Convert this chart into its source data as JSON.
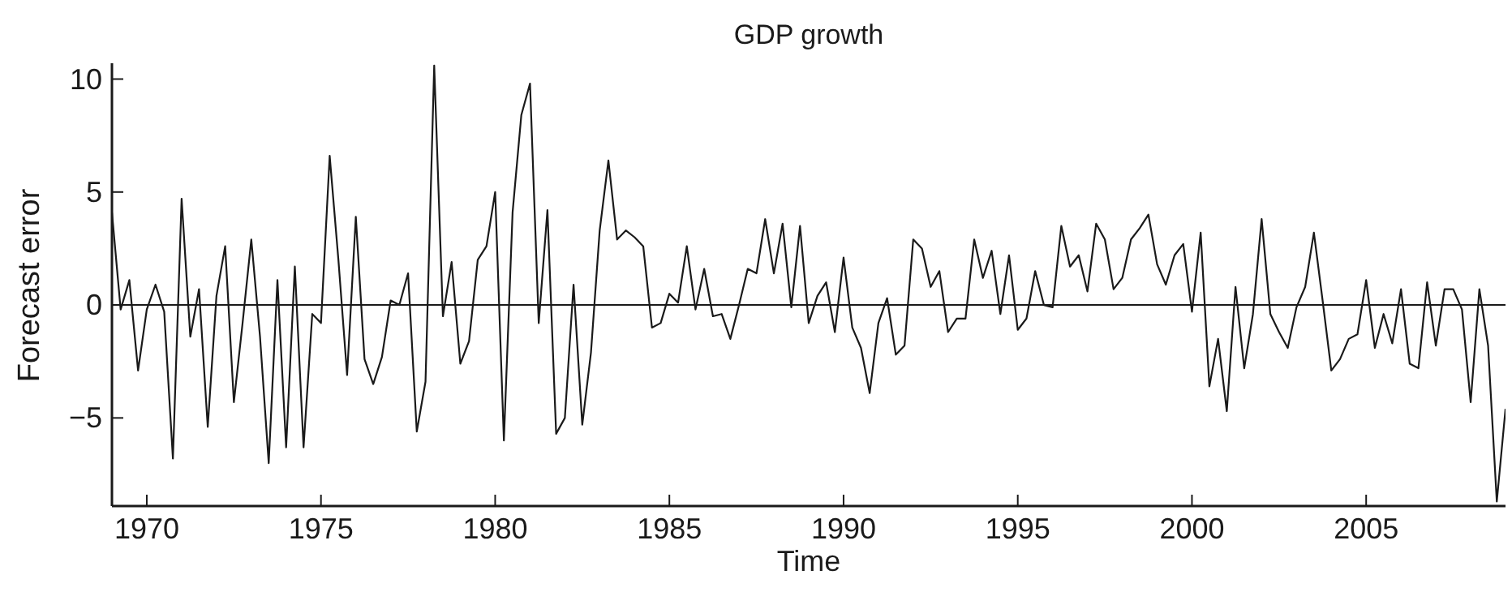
{
  "chart_data": {
    "type": "line",
    "title": "GDP growth",
    "xlabel": "Time",
    "ylabel": "Forecast error",
    "x": [
      1969,
      1969.25,
      1969.5,
      1969.75,
      1970,
      1970.25,
      1970.5,
      1970.75,
      1971,
      1971.25,
      1971.5,
      1971.75,
      1972,
      1972.25,
      1972.5,
      1972.75,
      1973,
      1973.25,
      1973.5,
      1973.75,
      1974,
      1974.25,
      1974.5,
      1974.75,
      1975,
      1975.25,
      1975.5,
      1975.75,
      1976,
      1976.25,
      1976.5,
      1976.75,
      1977,
      1977.25,
      1977.5,
      1977.75,
      1978,
      1978.25,
      1978.5,
      1978.75,
      1979,
      1979.25,
      1979.5,
      1979.75,
      1980,
      1980.25,
      1980.5,
      1980.75,
      1981,
      1981.25,
      1981.5,
      1981.75,
      1982,
      1982.25,
      1982.5,
      1982.75,
      1983,
      1983.25,
      1983.5,
      1983.75,
      1984,
      1984.25,
      1984.5,
      1984.75,
      1985,
      1985.25,
      1985.5,
      1985.75,
      1986,
      1986.25,
      1986.5,
      1986.75,
      1987,
      1987.25,
      1987.5,
      1987.75,
      1988,
      1988.25,
      1988.5,
      1988.75,
      1989,
      1989.25,
      1989.5,
      1989.75,
      1990,
      1990.25,
      1990.5,
      1990.75,
      1991,
      1991.25,
      1991.5,
      1991.75,
      1992,
      1992.25,
      1992.5,
      1992.75,
      1993,
      1993.25,
      1993.5,
      1993.75,
      1994,
      1994.25,
      1994.5,
      1994.75,
      1995,
      1995.25,
      1995.5,
      1995.75,
      1996,
      1996.25,
      1996.5,
      1996.75,
      1997,
      1997.25,
      1997.5,
      1997.75,
      1998,
      1998.25,
      1998.5,
      1998.75,
      1999,
      1999.25,
      1999.5,
      1999.75,
      2000,
      2000.25,
      2000.5,
      2000.75,
      2001,
      2001.25,
      2001.5,
      2001.75,
      2002,
      2002.25,
      2002.5,
      2002.75,
      2003,
      2003.25,
      2003.5,
      2003.75,
      2004,
      2004.25,
      2004.5,
      2004.75,
      2005,
      2005.25,
      2005.5,
      2005.75,
      2006,
      2006.25,
      2006.5,
      2006.75,
      2007,
      2007.25,
      2007.5,
      2007.75,
      2008,
      2008.25,
      2008.5,
      2008.75,
      2009
    ],
    "series": [
      {
        "color": "#1a1a1a",
        "values": [
          4.1,
          -0.2,
          1.1,
          -2.9,
          -0.2,
          0.9,
          -0.3,
          -6.8,
          4.7,
          -1.4,
          0.7,
          -5.4,
          0.4,
          2.6,
          -4.3,
          -0.8,
          2.9,
          -1.4,
          -7.0,
          1.1,
          -6.3,
          1.7,
          -6.3,
          -0.4,
          -0.8,
          6.6,
          2.0,
          -3.1,
          3.9,
          -2.4,
          -3.5,
          -2.3,
          0.2,
          0.0,
          1.4,
          -5.6,
          -3.4,
          10.6,
          -0.5,
          1.9,
          -2.6,
          -1.6,
          2.0,
          2.6,
          5.0,
          -6.0,
          4.1,
          8.4,
          9.8,
          -0.8,
          4.2,
          -5.7,
          -5.0,
          0.9,
          -5.3,
          -2.1,
          3.3,
          6.4,
          2.9,
          3.3,
          3.0,
          2.6,
          -1.0,
          -0.8,
          0.5,
          0.1,
          2.6,
          -0.2,
          1.6,
          -0.5,
          -0.4,
          -1.5,
          0.0,
          1.6,
          1.4,
          3.8,
          1.4,
          3.6,
          -0.1,
          3.5,
          -0.8,
          0.4,
          1.0,
          -1.2,
          2.1,
          -1.0,
          -1.9,
          -3.9,
          -0.8,
          0.3,
          -2.2,
          -1.8,
          2.9,
          2.5,
          0.8,
          1.5,
          -1.2,
          -0.6,
          -0.6,
          2.9,
          1.2,
          2.4,
          -0.4,
          2.2,
          -1.1,
          -0.6,
          1.5,
          0.0,
          -0.1,
          3.5,
          1.7,
          2.2,
          0.6,
          3.6,
          2.9,
          0.7,
          1.2,
          2.9,
          3.4,
          4.0,
          1.8,
          0.9,
          2.2,
          2.7,
          -0.3,
          3.2,
          -3.6,
          -1.5,
          -4.7,
          0.8,
          -2.8,
          -0.4,
          3.8,
          -0.4,
          -1.2,
          -1.9,
          -0.1,
          0.8,
          3.2,
          0.2,
          -2.9,
          -2.4,
          -1.5,
          -1.3,
          1.1,
          -1.9,
          -0.4,
          -1.7,
          0.7,
          -2.6,
          -2.8,
          1.0,
          -1.8,
          0.7,
          0.7,
          -0.2,
          -4.3,
          0.7,
          -1.8,
          -8.7,
          -4.6
        ]
      }
    ],
    "xlim": [
      1969,
      2009
    ],
    "xticks": [
      1970,
      1975,
      1980,
      1985,
      1990,
      1995,
      2000,
      2005
    ],
    "ylim": [
      -8.9,
      10.7
    ],
    "yticks": [
      -5,
      0,
      5,
      10
    ],
    "ref_lines": [
      {
        "axis": "y",
        "value": 0,
        "color": "#1a1a1a"
      }
    ],
    "marker": "none",
    "line_style": "solid"
  }
}
